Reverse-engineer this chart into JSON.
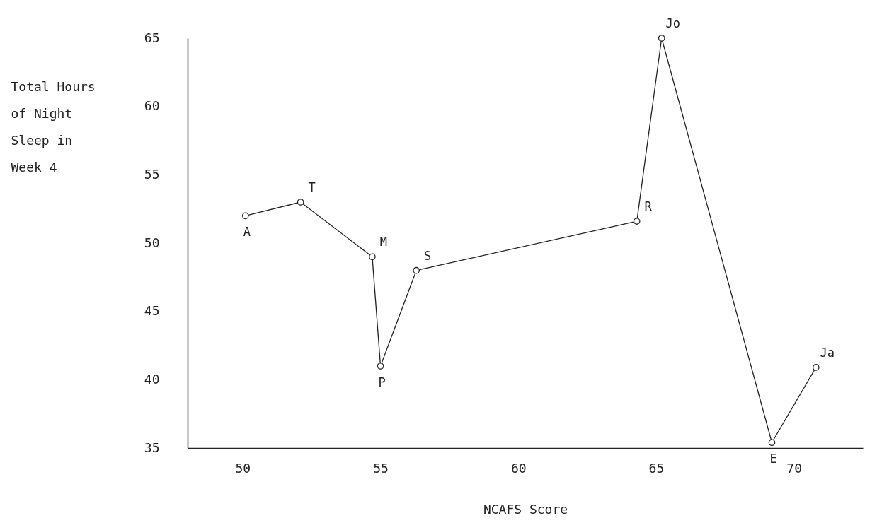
{
  "chart_data": {
    "type": "line",
    "xlabel": "NCAFS Score",
    "ylabel": "Total Hours of Night Sleep in Week 4",
    "x": [
      50.1,
      52.1,
      54.7,
      55.0,
      56.3,
      64.3,
      65.2,
      69.2,
      70.8
    ],
    "series": [
      {
        "color": "#222222",
        "values": [
          52,
          53,
          49,
          41,
          48,
          51.6,
          65,
          35.4,
          40.9
        ]
      }
    ],
    "xlim": [
      48,
      72.5
    ],
    "xticks": [
      50,
      55,
      60,
      65,
      70
    ],
    "ylim": [
      35,
      65
    ],
    "yticks": [
      35,
      40,
      45,
      50,
      55,
      60,
      65
    ],
    "grid": false,
    "marker": "circle",
    "line_style": "solid",
    "annotations": [
      {
        "text": "A",
        "x": 50.1,
        "y": 52
      },
      {
        "text": "T",
        "x": 52.1,
        "y": 53
      },
      {
        "text": "M",
        "x": 54.7,
        "y": 49
      },
      {
        "text": "P",
        "x": 55.0,
        "y": 41
      },
      {
        "text": "S",
        "x": 56.3,
        "y": 48
      },
      {
        "text": "R",
        "x": 64.3,
        "y": 51.6
      },
      {
        "text": "Jo",
        "x": 65.2,
        "y": 65
      },
      {
        "text": "E",
        "x": 69.2,
        "y": 35.4
      },
      {
        "text": "Ja",
        "x": 70.8,
        "y": 40.9
      }
    ]
  }
}
